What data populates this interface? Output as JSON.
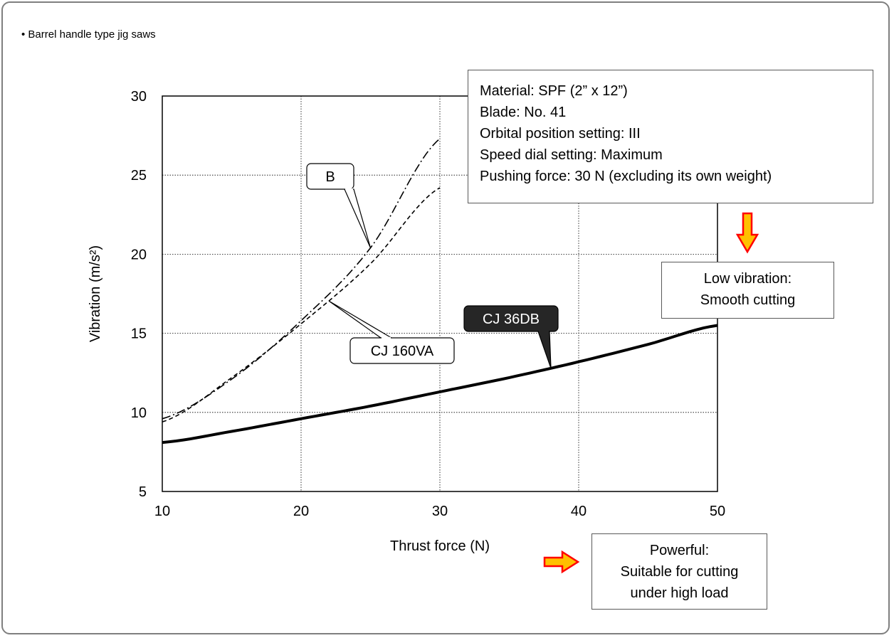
{
  "heading": "• Barrel handle type jig saws",
  "chart_data": {
    "type": "line",
    "title": "",
    "xlabel": "Thrust force (N)",
    "ylabel": "Vibration (m/s²)",
    "xlim": [
      10,
      50
    ],
    "ylim": [
      5,
      30
    ],
    "xticks": [
      10,
      20,
      30,
      40,
      50
    ],
    "yticks": [
      5,
      10,
      15,
      20,
      25,
      30
    ],
    "grid": "dotted",
    "series": [
      {
        "name": "CJ 36DB",
        "style": "solid-thick",
        "x": [
          10,
          15,
          20,
          25,
          30,
          35,
          40,
          45,
          50
        ],
        "values": [
          8.1,
          8.8,
          9.6,
          10.4,
          11.3,
          12.2,
          13.2,
          14.3,
          15.5
        ]
      },
      {
        "name": "CJ 160VA",
        "style": "dashed",
        "x": [
          10,
          15,
          20,
          25,
          30
        ],
        "values": [
          9.4,
          12.2,
          15.6,
          19.4,
          24.2
        ]
      },
      {
        "name": "B",
        "style": "dash-dot",
        "x": [
          10,
          15,
          20,
          25,
          30
        ],
        "values": [
          9.6,
          12.1,
          15.8,
          20.4,
          27.3
        ]
      }
    ],
    "callouts": [
      {
        "label": "B",
        "target_series": "B",
        "at_x": 25
      },
      {
        "label": "CJ 160VA",
        "target_series": "CJ 160VA",
        "at_x": 22
      },
      {
        "label": "CJ 36DB",
        "target_series": "CJ 36DB",
        "at_x": 38
      }
    ]
  },
  "conditions": [
    "Material: SPF (2” x 12”)",
    "Blade: No. 41",
    "Orbital position setting: III",
    "Speed dial setting: Maximum",
    "Pushing force: 30 N (excluding its own weight)"
  ],
  "low_vibration_note": [
    "Low vibration:",
    "Smooth cutting"
  ],
  "powerful_note": [
    "Powerful:",
    "Suitable for cutting",
    "under high load"
  ],
  "colors": {
    "arrow_fill": "#ffc000",
    "arrow_stroke": "#ff0000",
    "frame": "#7f7f7f",
    "dark_label": "#262626"
  }
}
